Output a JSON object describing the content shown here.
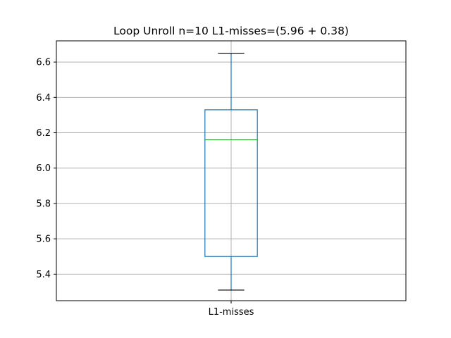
{
  "chart_data": {
    "type": "box",
    "title": "Loop Unroll n=10  L1-misses=(5.96 + 0.38)",
    "categories": [
      "L1-misses"
    ],
    "ylim": [
      5.25,
      6.72
    ],
    "yticks": [
      5.4,
      5.6,
      5.8,
      6.0,
      6.2,
      6.4,
      6.6
    ],
    "ytick_labels": [
      "5.4",
      "5.6",
      "5.8",
      "6.0",
      "6.2",
      "6.4",
      "6.6"
    ],
    "grid": true,
    "boxes": [
      {
        "category": "L1-misses",
        "whisker_low": 5.31,
        "q1": 5.5,
        "median": 6.16,
        "q3": 6.33,
        "whisker_high": 6.65
      }
    ],
    "colors": {
      "box": "#1f77b4",
      "median": "#2ca02c",
      "whisker_cap": "#000000",
      "grid": "#b0b0b0"
    }
  }
}
